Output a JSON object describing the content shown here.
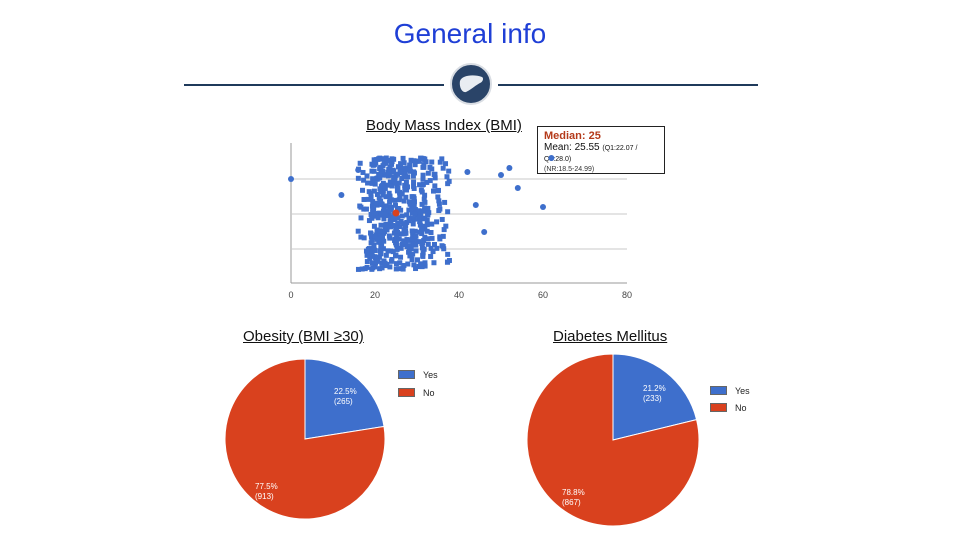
{
  "page": {
    "title": "General info"
  },
  "header_icon": "liver-icon",
  "colors": {
    "title": "#1f3fd6",
    "line": "#1f3a5b",
    "blue": "#3e6fcc",
    "red": "#d9411e",
    "median_text": "#b43a1a"
  },
  "bmi": {
    "title": "Body Mass Index (BMI)",
    "median_label": "Median: 25",
    "mean_label": "Mean: 25.55",
    "mean_quartiles": "(Q1:22.07 / Q3:28.0)",
    "normal_range": "(NR:18.5-24.99)"
  },
  "obesity": {
    "title": "Obesity (BMI ≥30)"
  },
  "diabetes": {
    "title": "Diabetes Mellitus"
  },
  "chart_data": [
    {
      "type": "scatter",
      "title": "Body Mass Index (BMI)",
      "x_ticks": [
        "0",
        "20",
        "40",
        "60",
        "80"
      ],
      "xlim": [
        0,
        80
      ],
      "grid": true,
      "median_marker": {
        "x": 25,
        "color": "#d9411e"
      },
      "outliers": [
        0,
        12,
        16,
        20,
        42,
        44,
        46,
        50,
        52,
        54,
        60,
        62
      ]
    },
    {
      "type": "pie",
      "title": "Obesity (BMI ≥30)",
      "slices": [
        {
          "label": "Yes",
          "value_label": "22.5%",
          "count_label": "(265)",
          "value": 22.5,
          "color": "#3e6fcc"
        },
        {
          "label": "No",
          "value_label": "77.5%",
          "count_label": "(913)",
          "value": 77.5,
          "color": "#d9411e"
        }
      ],
      "legend": [
        "Yes",
        "No"
      ],
      "legend_position": "top-right"
    },
    {
      "type": "pie",
      "title": "Diabetes Mellitus",
      "slices": [
        {
          "label": "Yes",
          "value_label": "21.2%",
          "count_label": "(233)",
          "value": 21.2,
          "color": "#3e6fcc"
        },
        {
          "label": "No",
          "value_label": "78.8%",
          "count_label": "(867)",
          "value": 78.8,
          "color": "#d9411e"
        }
      ],
      "legend": [
        "Yes",
        "No"
      ],
      "legend_position": "right"
    }
  ]
}
